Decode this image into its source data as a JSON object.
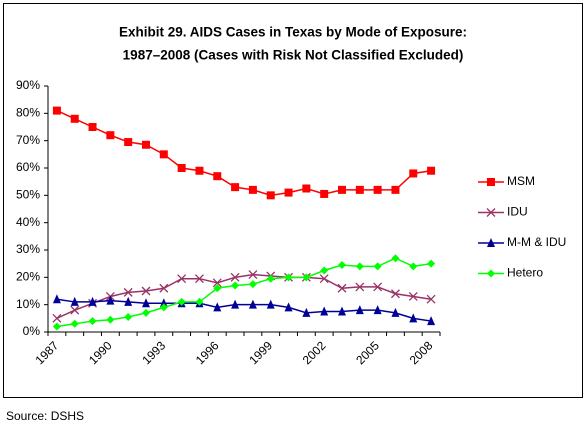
{
  "chart_data": {
    "type": "line",
    "title": [
      "Exhibit 29. AIDS Cases in Texas by Mode of Exposure:",
      "1987–2008 (Cases with Risk Not Classified Excluded)"
    ],
    "source": "Source: DSHS",
    "categories": [
      "1987",
      null,
      null,
      "1990",
      null,
      null,
      "1993",
      null,
      null,
      "1996",
      null,
      null,
      "1999",
      null,
      null,
      "2002",
      null,
      null,
      "2005",
      null,
      null,
      "2008"
    ],
    "ylim": [
      0,
      90
    ],
    "yticks": [
      {
        "value": 0,
        "label": "0%"
      },
      {
        "value": 10,
        "label": "10%"
      },
      {
        "value": 20,
        "label": "20%"
      },
      {
        "value": 30,
        "label": "30%"
      },
      {
        "value": 40,
        "label": "40%"
      },
      {
        "value": 50,
        "label": "50%"
      },
      {
        "value": 60,
        "label": "60%"
      },
      {
        "value": 70,
        "label": "70%"
      },
      {
        "value": 80,
        "label": "80%"
      },
      {
        "value": 90,
        "label": "90%"
      }
    ],
    "grid": false,
    "legend": "right",
    "series": [
      {
        "name": "MSM",
        "color": "#ff0000",
        "marker": "square",
        "values": [
          81,
          78,
          75,
          72,
          69.5,
          68.5,
          65,
          60,
          59,
          57,
          53,
          52,
          50,
          51,
          52.5,
          50.5,
          52,
          52,
          52,
          52,
          58,
          59
        ]
      },
      {
        "name": "IDU",
        "color": "#993366",
        "marker": "x",
        "values": [
          5,
          8,
          10.5,
          13,
          14.5,
          15,
          16,
          19.5,
          19.5,
          18,
          20,
          21,
          20.5,
          20,
          20,
          19.5,
          16,
          16.5,
          16.5,
          14,
          13,
          12
        ]
      },
      {
        "name": "M-M & IDU",
        "color": "#000099",
        "marker": "triangle",
        "values": [
          12,
          11,
          11,
          11.5,
          11,
          10.5,
          10.5,
          10.5,
          10.5,
          9,
          10,
          10,
          10,
          9,
          7,
          7.5,
          7.5,
          8,
          8,
          7,
          5,
          4
        ]
      },
      {
        "name": "Hetero",
        "color": "#00ff00",
        "marker": "diamond",
        "values": [
          2,
          3,
          4,
          4.5,
          5.5,
          7,
          9,
          11,
          11,
          16,
          17,
          17.5,
          19.5,
          20,
          20,
          22.5,
          24.5,
          24,
          24,
          27,
          24,
          25
        ]
      }
    ]
  }
}
